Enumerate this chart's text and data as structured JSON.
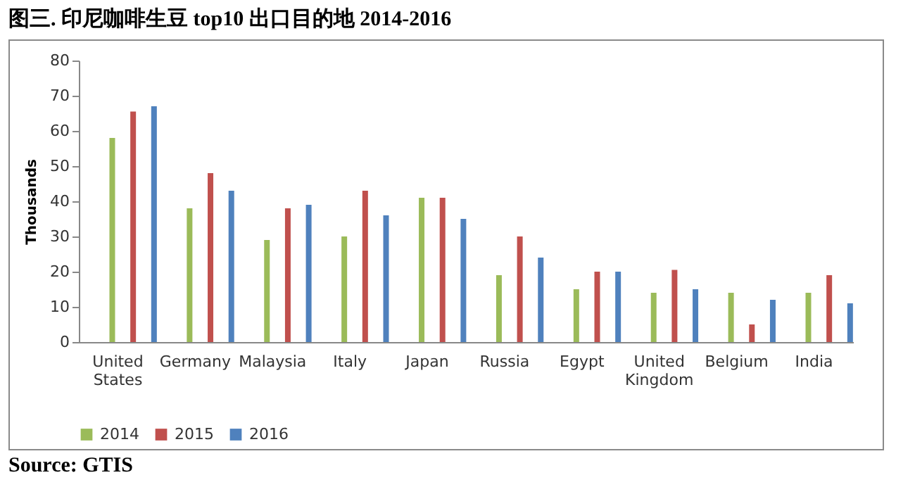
{
  "chart_data": {
    "type": "bar",
    "title": "图三. 印尼咖啡生豆 top10 出口目的地  2014-2016",
    "ylabel": "Thousands",
    "categories": [
      "United States",
      "Germany",
      "Malaysia",
      "Italy",
      "Japan",
      "Russia",
      "Egypt",
      "United Kingdom",
      "Belgium",
      "India"
    ],
    "series": [
      {
        "name": "2014",
        "color": "#9bbb59",
        "values": [
          58,
          38,
          29,
          30,
          41,
          19,
          15,
          14,
          14,
          14
        ]
      },
      {
        "name": "2015",
        "color": "#c0504d",
        "values": [
          65.5,
          48,
          38,
          43,
          41,
          30,
          20,
          20.5,
          5,
          19
        ]
      },
      {
        "name": "2016",
        "color": "#4f81bd",
        "values": [
          67,
          43,
          39,
          36,
          35,
          24,
          20,
          15,
          12,
          11
        ]
      }
    ],
    "ylim": [
      0,
      80
    ],
    "yticks": [
      0,
      10,
      20,
      30,
      40,
      50,
      60,
      70,
      80
    ],
    "grid": false,
    "legend": "bottom",
    "annotations": [
      "Source: GTIS"
    ]
  }
}
